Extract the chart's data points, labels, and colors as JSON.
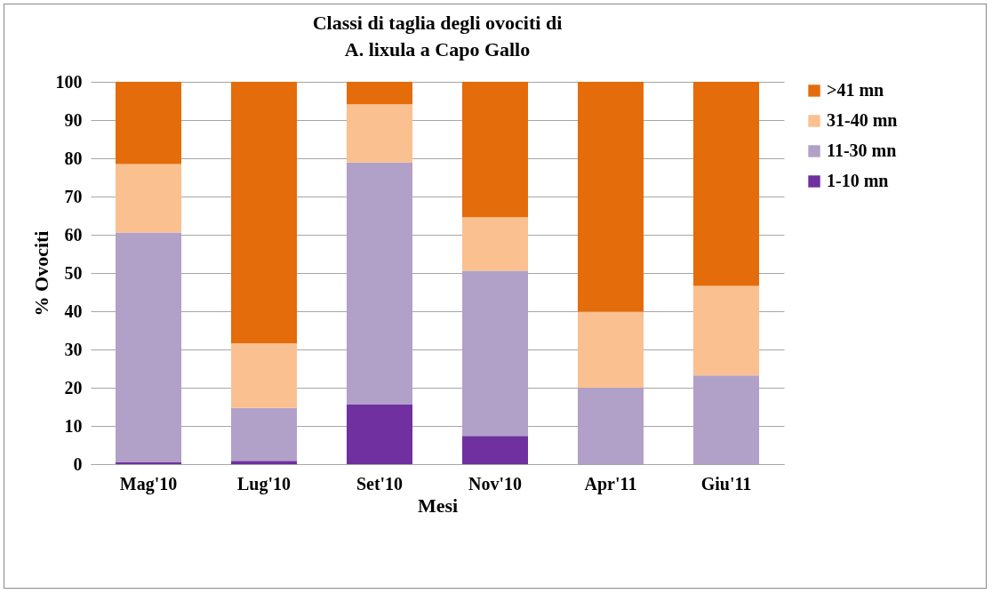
{
  "chart_data": {
    "type": "bar",
    "stacked": true,
    "title": [
      "Classi di taglia degli ovociti di",
      "A. lixula a Capo Gallo"
    ],
    "xlabel": "Mesi",
    "ylabel": "% Ovociti",
    "categories": [
      "Mag'10",
      "Lug'10",
      "Set'10",
      "Nov'10",
      "Apr'11",
      "Giu'11"
    ],
    "series": [
      {
        "name": "1-10 mn",
        "color": "#7030a0",
        "values": [
          0.6,
          0.9,
          15.6,
          7.4,
          0,
          0
        ]
      },
      {
        "name": "11-30 mn",
        "color": "#b1a0c7",
        "values": [
          60.0,
          13.8,
          63.3,
          43.2,
          20.0,
          23.2
        ]
      },
      {
        "name": "31-40 mn",
        "color": "#fac090",
        "values": [
          17.9,
          16.9,
          15.2,
          14.0,
          19.9,
          23.4
        ]
      },
      {
        "name": ">41 mn",
        "color": "#e46c0a",
        "values": [
          21.5,
          68.4,
          5.9,
          35.4,
          60.1,
          53.4
        ]
      }
    ],
    "ylim": [
      0,
      100
    ],
    "yticks": [
      0,
      10,
      20,
      30,
      40,
      50,
      60,
      70,
      80,
      90,
      100
    ],
    "grid": "y",
    "legend": "right"
  }
}
